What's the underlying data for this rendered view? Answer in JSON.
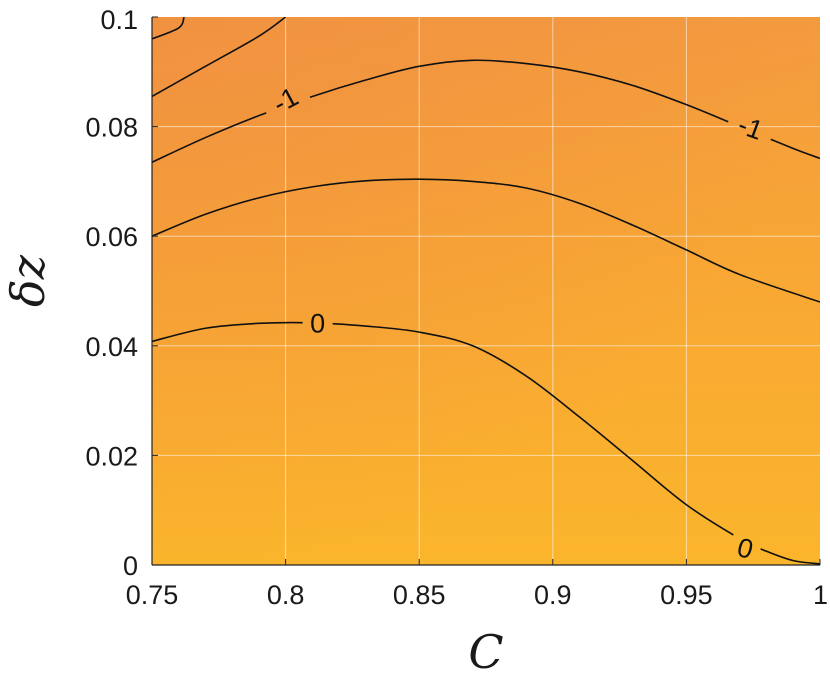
{
  "chart_data": {
    "type": "contour",
    "title": "",
    "xlabel": "C",
    "ylabel": "δz",
    "xlim": [
      0.75,
      1.0
    ],
    "ylim": [
      0,
      0.1
    ],
    "grid": true,
    "x_ticks": [
      {
        "value": 0.75,
        "label": "0.75"
      },
      {
        "value": 0.8,
        "label": "0.8"
      },
      {
        "value": 0.85,
        "label": "0.85"
      },
      {
        "value": 0.9,
        "label": "0.9"
      },
      {
        "value": 0.95,
        "label": "0.95"
      },
      {
        "value": 1.0,
        "label": "1"
      }
    ],
    "y_ticks": [
      {
        "value": 0,
        "label": "0"
      },
      {
        "value": 0.02,
        "label": "0.02"
      },
      {
        "value": 0.04,
        "label": "0.04"
      },
      {
        "value": 0.06,
        "label": "0.06"
      },
      {
        "value": 0.08,
        "label": "0.08"
      },
      {
        "value": 0.1,
        "label": "0.1"
      }
    ],
    "colors": {
      "fill_low": "#fbb52c",
      "fill_mid": "#f8a734",
      "fill_high": "#f39a3f",
      "contour": "#111111",
      "grid": "#ffffff"
    },
    "contours": [
      {
        "points": [
          [
            0.75,
            0.0408
          ],
          [
            0.77,
            0.0432
          ],
          [
            0.79,
            0.0441
          ],
          [
            0.81,
            0.0442
          ],
          [
            0.83,
            0.0436
          ],
          [
            0.85,
            0.0425
          ],
          [
            0.87,
            0.04
          ],
          [
            0.89,
            0.0345
          ],
          [
            0.91,
            0.027
          ],
          [
            0.93,
            0.019
          ],
          [
            0.95,
            0.011
          ],
          [
            0.97,
            0.0048
          ],
          [
            0.98,
            0.0025
          ],
          [
            0.99,
            0.0008
          ],
          [
            1.0,
            0.0002
          ]
        ]
      },
      {
        "points": [
          [
            0.75,
            0.06
          ],
          [
            0.77,
            0.064
          ],
          [
            0.79,
            0.067
          ],
          [
            0.81,
            0.069
          ],
          [
            0.83,
            0.0701
          ],
          [
            0.85,
            0.0704
          ],
          [
            0.87,
            0.07
          ],
          [
            0.89,
            0.0688
          ],
          [
            0.91,
            0.066
          ],
          [
            0.93,
            0.062
          ],
          [
            0.95,
            0.0575
          ],
          [
            0.97,
            0.053
          ],
          [
            1.0,
            0.048
          ]
        ]
      },
      {
        "points": [
          [
            0.75,
            0.0735
          ],
          [
            0.77,
            0.078
          ],
          [
            0.79,
            0.082
          ],
          [
            0.81,
            0.0855
          ],
          [
            0.83,
            0.0885
          ],
          [
            0.85,
            0.091
          ],
          [
            0.87,
            0.0921
          ],
          [
            0.89,
            0.0915
          ],
          [
            0.91,
            0.09
          ],
          [
            0.93,
            0.0875
          ],
          [
            0.95,
            0.084
          ],
          [
            0.97,
            0.08
          ],
          [
            0.99,
            0.076
          ],
          [
            1.0,
            0.0742
          ]
        ]
      },
      {
        "points": [
          [
            0.75,
            0.0855
          ],
          [
            0.77,
            0.091
          ],
          [
            0.79,
            0.0965
          ],
          [
            0.8,
            0.1
          ]
        ]
      },
      {
        "points": [
          [
            0.75,
            0.096
          ],
          [
            0.76,
            0.098
          ],
          [
            0.762,
            0.1
          ]
        ]
      }
    ],
    "contour_labels": [
      {
        "text": "-1",
        "x": 0.8,
        "y": 0.0848,
        "angle": -28
      },
      {
        "text": "-1",
        "x": 0.974,
        "y": 0.0798,
        "angle": 20
      },
      {
        "text": "0",
        "x": 0.812,
        "y": 0.0441,
        "angle": 0
      },
      {
        "text": "0",
        "x": 0.972,
        "y": 0.003,
        "angle": 15
      }
    ]
  }
}
